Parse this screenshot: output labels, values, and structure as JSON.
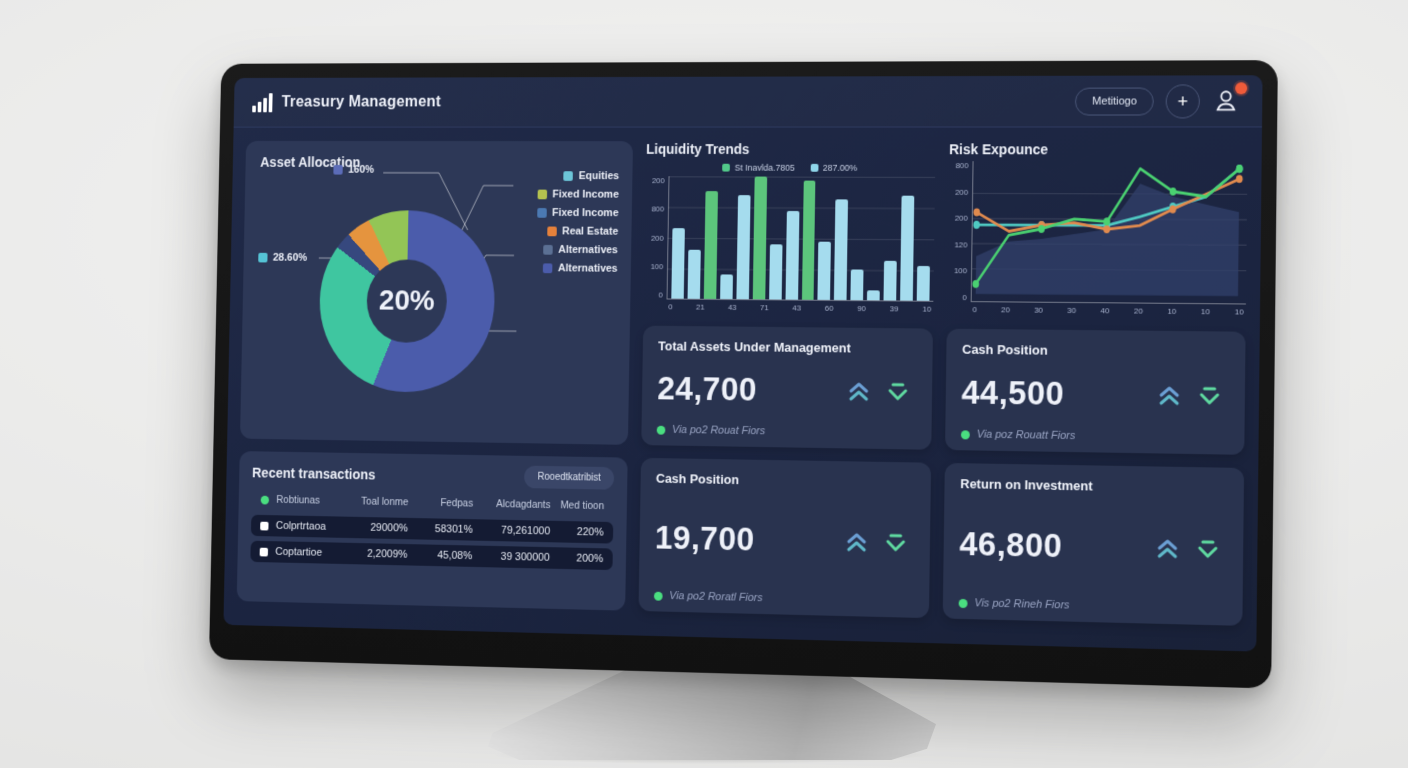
{
  "header": {
    "title": "Treasury Management",
    "menu_button_label": "Metitiogo",
    "add_button_label": "+"
  },
  "asset_allocation": {
    "title": "Asset Allocation",
    "center_label": "20%",
    "callouts": [
      {
        "label": "160%",
        "color": "#5b6cb8"
      },
      {
        "label": "28.60%",
        "color": "#55c4d6"
      }
    ],
    "legend": [
      {
        "label": "Equities",
        "color": "#6cc5d8"
      },
      {
        "label": "Fixed Income",
        "color": "#b4c24f"
      },
      {
        "label": "Fixed Income",
        "color": "#4b79b2"
      },
      {
        "label": "Real Estate",
        "color": "#e5813b"
      },
      {
        "label": "Alternatives",
        "color": "#5b7094"
      },
      {
        "label": "Alternatives",
        "color": "#4b5cab"
      }
    ]
  },
  "chart_data": [
    {
      "type": "pie",
      "title": "Asset Allocation",
      "center_label": "20%",
      "segments": [
        {
          "label": "Equities",
          "value": 56,
          "color": "#4b5cab"
        },
        {
          "label": "Fixed Income",
          "value": 29,
          "color": "#3fc6a0"
        },
        {
          "label": "Alternatives",
          "value": 3,
          "color": "#36487e"
        },
        {
          "label": "Real Estate",
          "value": 4.5,
          "color": "#e5943e"
        },
        {
          "label": "Fixed Income",
          "value": 7.5,
          "color": "#93c556"
        }
      ]
    },
    {
      "type": "bar",
      "title": "Liquidity Trends",
      "legend": [
        {
          "label": "St Inavlda.7805",
          "color": "#52c98a"
        },
        {
          "label": "287.00%",
          "color": "#8fd6ea"
        }
      ],
      "values": [
        58,
        40,
        88,
        20,
        85,
        100,
        45,
        72,
        97,
        47,
        82,
        25,
        8,
        32,
        85,
        28
      ],
      "green_indices": [
        2,
        5,
        8
      ],
      "bar_color": "#a5dcee",
      "green_color": "#5cc57c",
      "y_ticks": [
        "200",
        "800",
        "200",
        "100",
        "0"
      ],
      "x_ticks": [
        "0",
        "21",
        "43",
        "71",
        "43",
        "60",
        "90",
        "39",
        "10"
      ],
      "ylim": [
        0,
        100
      ]
    },
    {
      "type": "line",
      "title": "Risk Expounce",
      "y_ticks": [
        "800",
        "200",
        "200",
        "120",
        "100",
        "0"
      ],
      "x_ticks": [
        "0",
        "20",
        "30",
        "30",
        "40",
        "20",
        "10",
        "10",
        "10"
      ],
      "area_series": {
        "name": "background-area",
        "color": "#31406b",
        "values": [
          30,
          42,
          44,
          48,
          52,
          88,
          78,
          72,
          66
        ]
      },
      "series": [
        {
          "name": "teal",
          "color": "#4fc9c2",
          "values": [
            55,
            55,
            55,
            55,
            55,
            62,
            70,
            78,
            100
          ]
        },
        {
          "name": "orange",
          "color": "#e08a4e",
          "values": [
            65,
            50,
            55,
            57,
            52,
            55,
            68,
            80,
            92
          ]
        },
        {
          "name": "green",
          "color": "#4ad171",
          "values": [
            8,
            47,
            52,
            60,
            58,
            100,
            82,
            78,
            100
          ]
        }
      ],
      "ylim": [
        0,
        100
      ]
    }
  ],
  "kpi_cards": [
    {
      "title": "Total Assets Under Management",
      "value": "24,700",
      "note": "Via po2 Rouat Fiors"
    },
    {
      "title": "Cash Position",
      "value": "44,500",
      "note": "Via poz Rouatt Fiors"
    },
    {
      "title": "Cash Position",
      "value": "19,700",
      "note": "Via po2 Roratl Fiors"
    },
    {
      "title": "Return on Investment",
      "value": "46,800",
      "note": "Vis po2 Rineh Fiors"
    }
  ],
  "transactions": {
    "title": "Recent transactions",
    "button_label": "Rooedtkatribist",
    "columns": [
      "Robtiunas",
      "Toal lonme",
      "Fedpas",
      "Alcdagdants",
      "Med tioon"
    ],
    "rows": [
      [
        "Colprtrtaoa",
        "29000%",
        "58301%",
        "79,261000",
        "220%"
      ],
      [
        "Coptartioe",
        "2,2009%",
        "45,08%",
        "39 300000",
        "200%"
      ]
    ]
  }
}
